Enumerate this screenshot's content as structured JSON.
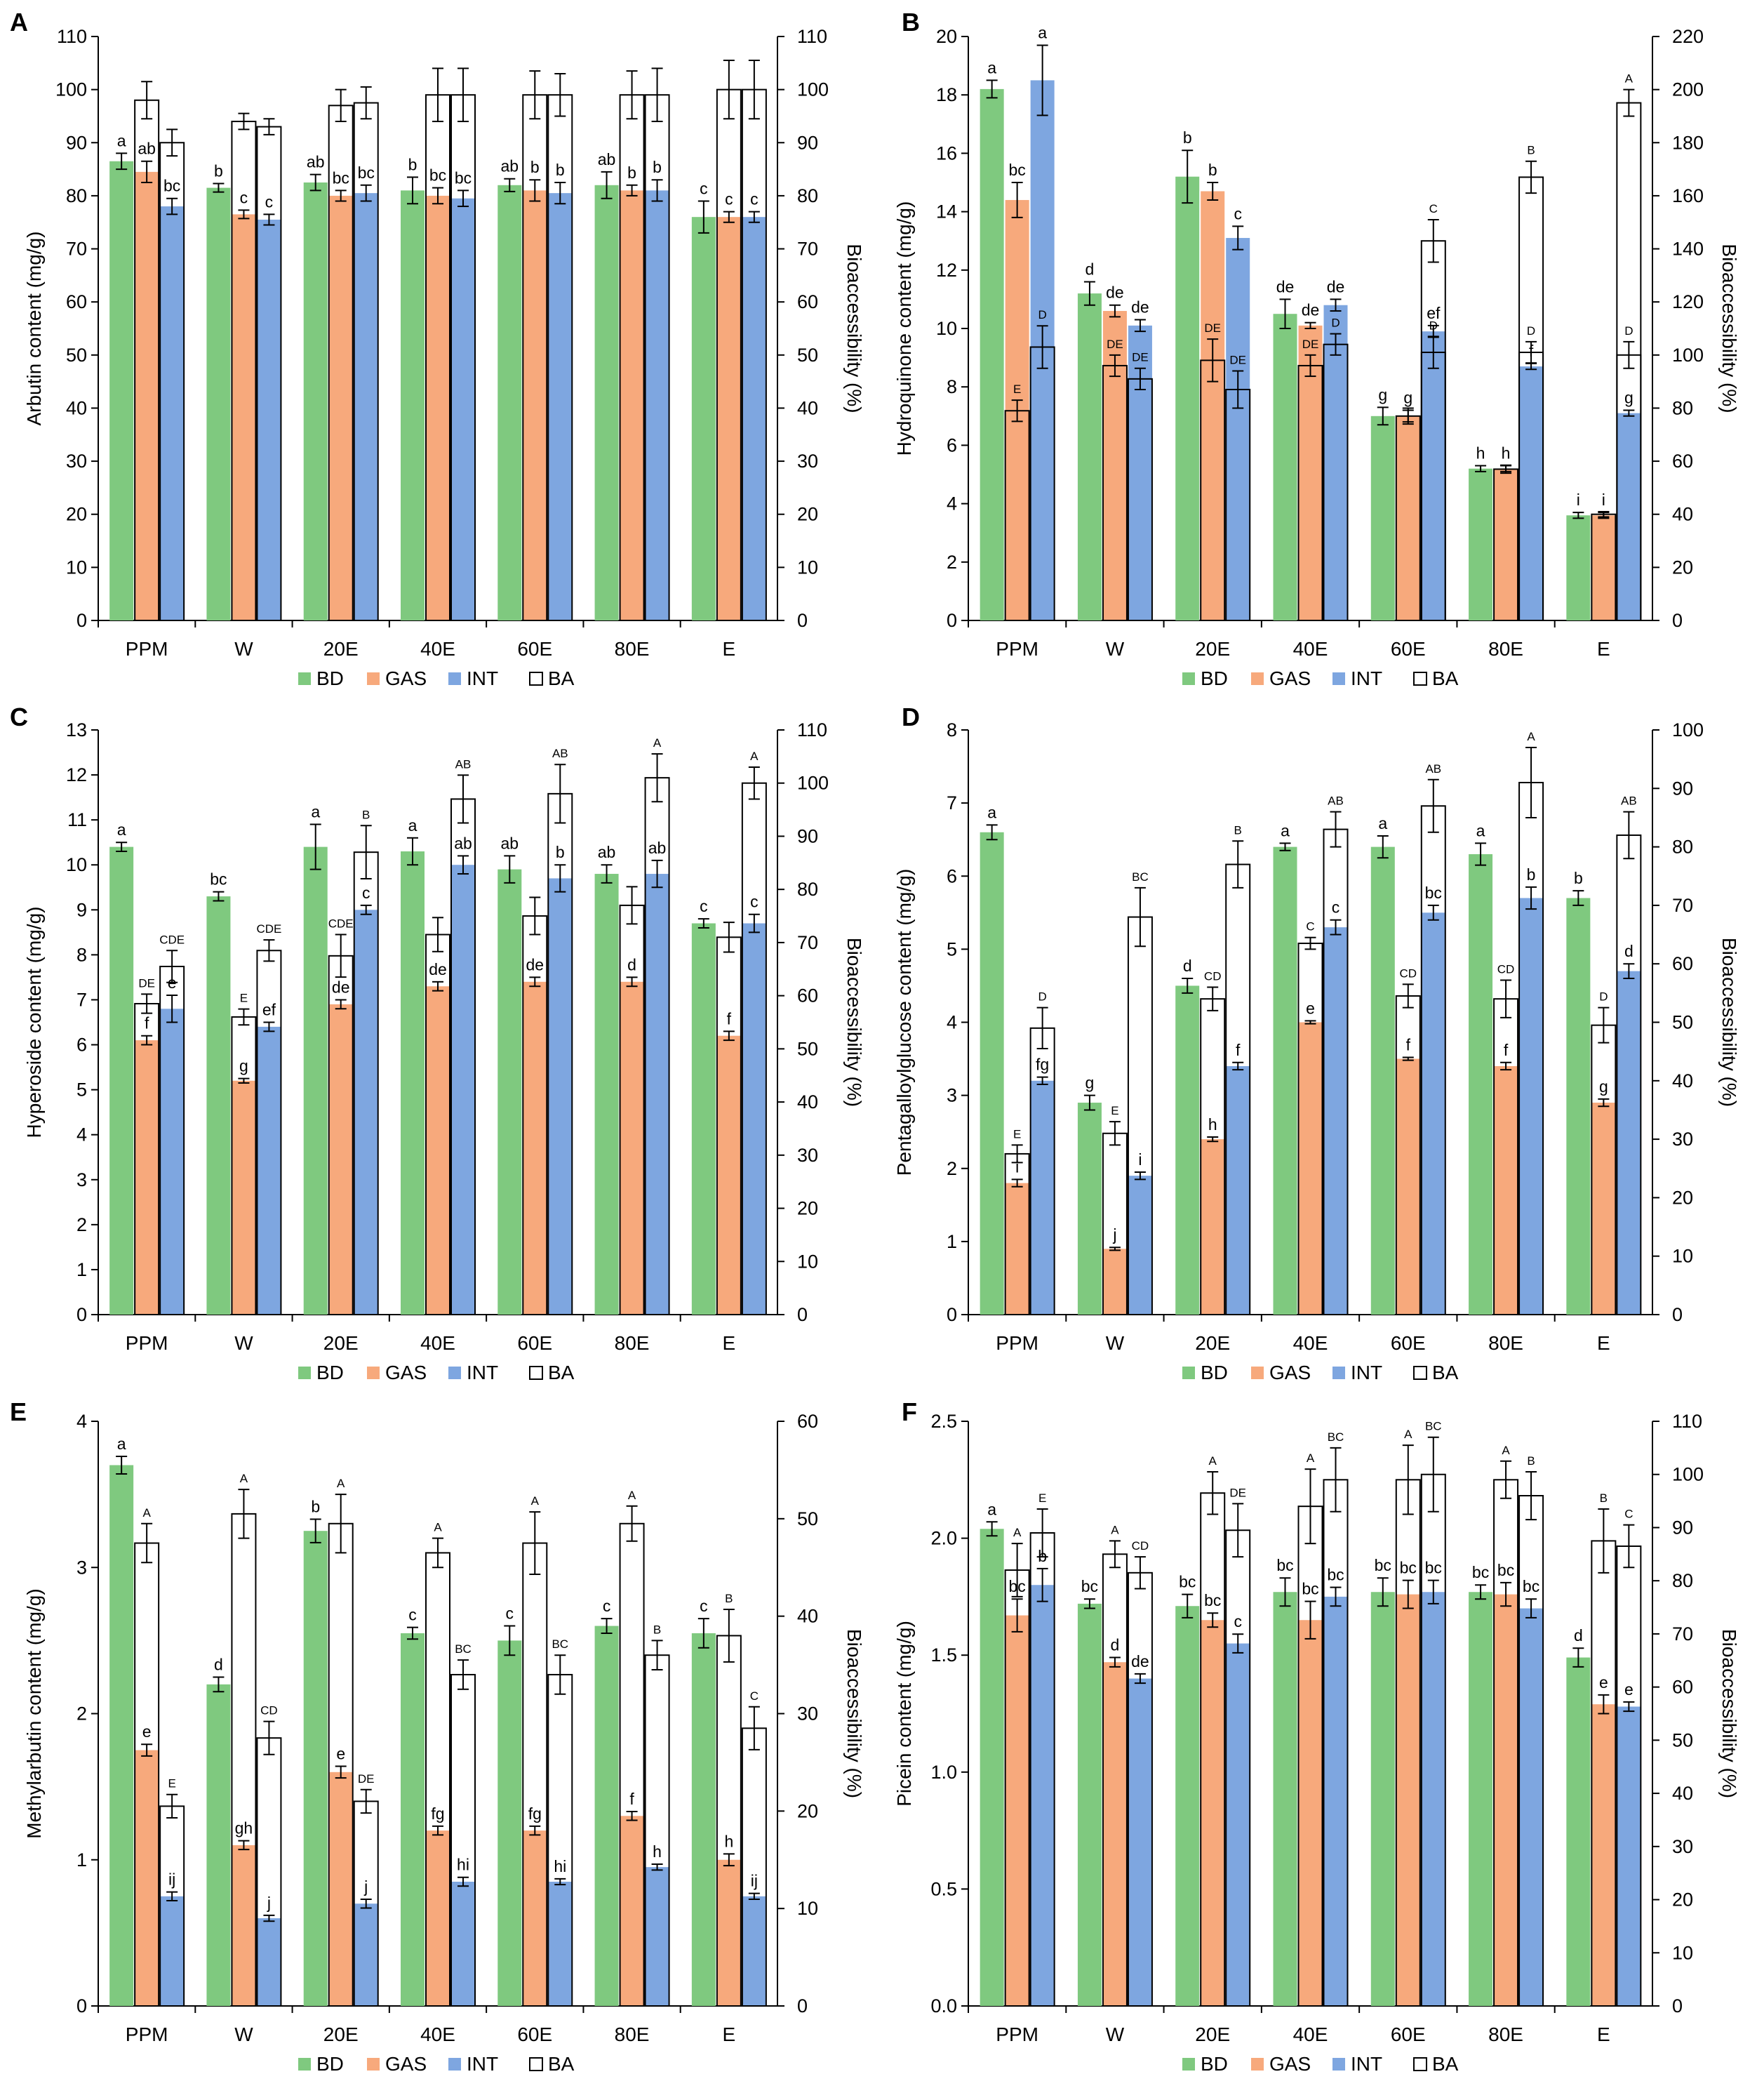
{
  "colors": {
    "BD": "#7fc97f",
    "GAS": "#f7a97c",
    "INT": "#7ea6e0",
    "BA": "#ffffff"
  },
  "legend": [
    "BD",
    "GAS",
    "INT",
    "BA"
  ],
  "chart_data": [
    {
      "panel": "A",
      "type": "bar",
      "categories": [
        "PPM",
        "W",
        "20E",
        "40E",
        "60E",
        "80E",
        "E"
      ],
      "ylabel": "Arbutin content (mg/g)",
      "y2label": "Bioaccessibility (%)",
      "ylim": [
        0,
        110
      ],
      "ystep": 10,
      "y2lim": [
        0,
        110
      ],
      "y2step": 10,
      "decimals": 0,
      "series": [
        {
          "name": "BD",
          "axis": "left",
          "values": [
            86.5,
            81.5,
            82.5,
            81,
            82,
            82,
            76
          ],
          "err": [
            1.5,
            0.8,
            1.5,
            2.5,
            1.2,
            2.5,
            3
          ],
          "labels": [
            "a",
            "b",
            "ab",
            "b",
            "ab",
            "ab",
            "c"
          ]
        },
        {
          "name": "GAS",
          "axis": "left",
          "values": [
            84.5,
            76.5,
            80,
            80,
            81,
            81,
            76
          ],
          "err": [
            2,
            0.8,
            1,
            1.5,
            2,
            1,
            1
          ],
          "labels": [
            "ab",
            "c",
            "bc",
            "bc",
            "b",
            "b",
            "c"
          ]
        },
        {
          "name": "INT",
          "axis": "left",
          "values": [
            78,
            75.5,
            80.5,
            79.5,
            80.5,
            81,
            76
          ],
          "err": [
            1.5,
            1,
            1.5,
            1.5,
            2,
            2,
            1
          ],
          "labels": [
            "bc",
            "c",
            "bc",
            "bc",
            "b",
            "b",
            "c"
          ]
        },
        {
          "name": "BA",
          "axis": "right",
          "start": "GAS",
          "values": [
            98,
            94,
            97,
            99,
            99,
            99,
            100
          ],
          "err": [
            3.5,
            1.5,
            3,
            5,
            4.5,
            4.5,
            5.5
          ],
          "labels": [
            "",
            "",
            "",
            "",
            "",
            "",
            ""
          ]
        },
        {
          "name": "BA",
          "axis": "right",
          "start": "INT",
          "values": [
            90,
            93,
            97.5,
            99,
            99,
            99,
            100
          ],
          "err": [
            2.5,
            1.5,
            3,
            5,
            4,
            5,
            5.5
          ],
          "labels": [
            "",
            "",
            "",
            "",
            "",
            "",
            ""
          ]
        }
      ]
    },
    {
      "panel": "B",
      "type": "bar",
      "categories": [
        "PPM",
        "W",
        "20E",
        "40E",
        "60E",
        "80E",
        "E"
      ],
      "ylabel": "Hydroquinone content (mg/g)",
      "y2label": "Bioaccessibility (%)",
      "ylim": [
        0,
        20
      ],
      "ystep": 2,
      "y2lim": [
        0,
        220
      ],
      "y2step": 20,
      "decimals": 0,
      "series": [
        {
          "name": "BD",
          "axis": "left",
          "values": [
            18.2,
            11.2,
            15.2,
            10.5,
            7,
            5.2,
            3.6
          ],
          "err": [
            0.3,
            0.4,
            0.9,
            0.5,
            0.3,
            0.1,
            0.1
          ],
          "labels": [
            "a",
            "d",
            "b",
            "de",
            "g",
            "h",
            "i"
          ]
        },
        {
          "name": "GAS",
          "axis": "left",
          "values": [
            14.4,
            10.6,
            14.7,
            10.1,
            7,
            5.2,
            3.6
          ],
          "err": [
            0.6,
            0.2,
            0.3,
            0.1,
            0.2,
            0.1,
            0.1
          ],
          "labels": [
            "bc",
            "de",
            "b",
            "de",
            "g",
            "h",
            "i"
          ]
        },
        {
          "name": "INT",
          "axis": "left",
          "values": [
            18.5,
            10.1,
            13.1,
            10.8,
            9.9,
            8.7,
            7.1
          ],
          "err": [
            1.2,
            0.2,
            0.4,
            0.2,
            0.2,
            0.1,
            0.1
          ],
          "labels": [
            "a",
            "de",
            "c",
            "de",
            "ef",
            "f",
            "g"
          ]
        },
        {
          "name": "BA",
          "axis": "right",
          "start": "GAS",
          "values": [
            79,
            96,
            98,
            96,
            77,
            57,
            40
          ],
          "err": [
            4,
            4,
            8,
            4,
            3,
            1.5,
            1
          ],
          "labels": [
            "E",
            "DE",
            "DE",
            "DE",
            "",
            "",
            ""
          ]
        },
        {
          "name": "BA",
          "axis": "right",
          "start": "INT",
          "values": [
            103,
            91,
            87,
            104,
            101,
            101,
            100
          ],
          "err": [
            8,
            4,
            7,
            4,
            6,
            4,
            5
          ],
          "labels": [
            "D",
            "DE",
            "DE",
            "D",
            "D",
            "D",
            "D"
          ]
        },
        {
          "name": "BA",
          "axis": "right",
          "start": "INT",
          "values": [
            0,
            0,
            0,
            0,
            143,
            167,
            195
          ],
          "err": [
            0,
            0,
            0,
            0,
            8,
            6,
            5
          ],
          "labels": [
            "",
            "",
            "",
            "",
            "C",
            "B",
            "A"
          ]
        }
      ]
    },
    {
      "panel": "C",
      "type": "bar",
      "categories": [
        "PPM",
        "W",
        "20E",
        "40E",
        "60E",
        "80E",
        "E"
      ],
      "ylabel": "Hyperoside content (mg/g)",
      "y2label": "Bioaccessibility (%)",
      "ylim": [
        0,
        13
      ],
      "ystep": 1,
      "y2lim": [
        0,
        110
      ],
      "y2step": 10,
      "decimals": 0,
      "series": [
        {
          "name": "BD",
          "axis": "left",
          "values": [
            10.4,
            9.3,
            10.4,
            10.3,
            9.9,
            9.8,
            8.7
          ],
          "err": [
            0.1,
            0.1,
            0.5,
            0.3,
            0.3,
            0.2,
            0.1
          ],
          "labels": [
            "a",
            "bc",
            "a",
            "a",
            "ab",
            "ab",
            "c"
          ]
        },
        {
          "name": "GAS",
          "axis": "left",
          "values": [
            6.1,
            5.2,
            6.9,
            7.3,
            7.4,
            7.4,
            6.2
          ],
          "err": [
            0.1,
            0.05,
            0.1,
            0.1,
            0.1,
            0.1,
            0.1
          ],
          "labels": [
            "f",
            "g",
            "de",
            "de",
            "de",
            "d",
            "f"
          ]
        },
        {
          "name": "INT",
          "axis": "left",
          "values": [
            6.8,
            6.4,
            9,
            10,
            9.7,
            9.8,
            8.7
          ],
          "err": [
            0.3,
            0.1,
            0.1,
            0.2,
            0.3,
            0.3,
            0.2
          ],
          "labels": [
            "e",
            "ef",
            "c",
            "ab",
            "b",
            "ab",
            "c"
          ]
        },
        {
          "name": "BA",
          "axis": "right",
          "start": "GAS",
          "values": [
            58.5,
            56,
            67.5,
            71.5,
            75,
            77,
            71
          ],
          "err": [
            1.8,
            1.5,
            4,
            3.2,
            3.5,
            3.5,
            2.8
          ],
          "labels": [
            "DE",
            "E",
            "CDE",
            "",
            "",
            "",
            ""
          ]
        },
        {
          "name": "BA",
          "axis": "right",
          "start": "INT",
          "values": [
            65.5,
            68.5,
            87,
            97,
            98,
            101,
            100
          ],
          "err": [
            3,
            2,
            5,
            4.5,
            5.5,
            4.5,
            3
          ],
          "labels": [
            "CDE",
            "CDE",
            "B",
            "AB",
            "AB",
            "A",
            "A"
          ]
        }
      ]
    },
    {
      "panel": "D",
      "type": "bar",
      "categories": [
        "PPM",
        "W",
        "20E",
        "40E",
        "60E",
        "80E",
        "E"
      ],
      "ylabel": "Pentagalloylglucose content (mg/g)",
      "y2label": "Bioaccessibility (%)",
      "ylim": [
        0,
        8
      ],
      "ystep": 1,
      "y2lim": [
        0,
        100
      ],
      "y2step": 10,
      "decimals": 0,
      "series": [
        {
          "name": "BD",
          "axis": "left",
          "values": [
            6.6,
            2.9,
            4.5,
            6.4,
            6.4,
            6.3,
            5.7
          ],
          "err": [
            0.1,
            0.1,
            0.1,
            0.05,
            0.15,
            0.15,
            0.1
          ],
          "labels": [
            "a",
            "g",
            "d",
            "a",
            "a",
            "a",
            "b"
          ]
        },
        {
          "name": "GAS",
          "axis": "left",
          "values": [
            1.8,
            0.9,
            2.4,
            4,
            3.5,
            3.4,
            2.9
          ],
          "err": [
            0.05,
            0.02,
            0.03,
            0.02,
            0.02,
            0.05,
            0.05
          ],
          "labels": [
            "i",
            "j",
            "h",
            "e",
            "f",
            "f",
            "g"
          ]
        },
        {
          "name": "INT",
          "axis": "left",
          "values": [
            3.2,
            1.9,
            3.4,
            5.3,
            5.5,
            5.7,
            4.7
          ],
          "err": [
            0.05,
            0.05,
            0.05,
            0.1,
            0.1,
            0.15,
            0.1
          ],
          "labels": [
            "fg",
            "i",
            "f",
            "c",
            "bc",
            "b",
            "d"
          ]
        },
        {
          "name": "BA",
          "axis": "right",
          "start": "GAS",
          "values": [
            27.5,
            31,
            54,
            63.5,
            54.5,
            54,
            49.5
          ],
          "err": [
            1.5,
            2,
            2,
            1,
            2,
            3.2,
            3
          ],
          "labels": [
            "E",
            "E",
            "CD",
            "C",
            "CD",
            "CD",
            "D"
          ]
        },
        {
          "name": "BA",
          "axis": "right",
          "start": "INT",
          "values": [
            49,
            68,
            77,
            83,
            87,
            91,
            82
          ],
          "err": [
            3.5,
            5,
            4,
            3,
            4.5,
            6,
            4
          ],
          "labels": [
            "D",
            "BC",
            "B",
            "AB",
            "AB",
            "A",
            "AB"
          ]
        }
      ]
    },
    {
      "panel": "E",
      "type": "bar",
      "categories": [
        "PPM",
        "W",
        "20E",
        "40E",
        "60E",
        "80E",
        "E"
      ],
      "ylabel": "Methylarbutin content (mg/g)",
      "y2label": "Bioaccessibility (%)",
      "ylim": [
        0,
        4
      ],
      "ystep": 1,
      "y2lim": [
        0,
        60
      ],
      "y2step": 10,
      "decimals": 0,
      "series": [
        {
          "name": "BD",
          "axis": "left",
          "values": [
            3.7,
            2.2,
            3.25,
            2.55,
            2.5,
            2.6,
            2.55
          ],
          "err": [
            0.06,
            0.05,
            0.08,
            0.04,
            0.1,
            0.05,
            0.1
          ],
          "labels": [
            "a",
            "d",
            "b",
            "c",
            "c",
            "c",
            "c"
          ]
        },
        {
          "name": "GAS",
          "axis": "left",
          "values": [
            1.75,
            1.1,
            1.6,
            1.2,
            1.2,
            1.3,
            1
          ],
          "err": [
            0.04,
            0.03,
            0.04,
            0.03,
            0.03,
            0.03,
            0.04
          ],
          "labels": [
            "e",
            "gh",
            "e",
            "fg",
            "fg",
            "f",
            "h"
          ]
        },
        {
          "name": "INT",
          "axis": "left",
          "values": [
            0.75,
            0.6,
            0.7,
            0.85,
            0.85,
            0.95,
            0.75
          ],
          "err": [
            0.03,
            0.02,
            0.03,
            0.03,
            0.02,
            0.02,
            0.02
          ],
          "labels": [
            "ij",
            "j",
            "j",
            "hi",
            "hi",
            "h",
            "ij"
          ]
        },
        {
          "name": "BA",
          "axis": "right",
          "start": "GAS",
          "values": [
            47.5,
            50.5,
            49.5,
            46.5,
            47.5,
            49.5,
            38
          ],
          "err": [
            2,
            2.5,
            3,
            1.5,
            3.2,
            1.8,
            2.7
          ],
          "labels": [
            "A",
            "A",
            "A",
            "A",
            "A",
            "A",
            "B"
          ]
        },
        {
          "name": "BA",
          "axis": "right",
          "start": "INT",
          "values": [
            20.5,
            27.5,
            21,
            34,
            34,
            36,
            28.5
          ],
          "err": [
            1.2,
            1.7,
            1.2,
            1.5,
            2,
            1.5,
            2.2
          ],
          "labels": [
            "E",
            "CD",
            "DE",
            "BC",
            "BC",
            "B",
            "C"
          ]
        }
      ]
    },
    {
      "panel": "F",
      "type": "bar",
      "categories": [
        "PPM",
        "W",
        "20E",
        "40E",
        "60E",
        "80E",
        "E"
      ],
      "ylabel": "Picein content (mg/g)",
      "y2label": "Bioaccessibility (%)",
      "ylim": [
        0,
        2.5
      ],
      "ystep": 0.5,
      "y2lim": [
        0,
        110
      ],
      "y2step": 10,
      "decimals": 1,
      "series": [
        {
          "name": "BD",
          "axis": "left",
          "values": [
            2.04,
            1.72,
            1.71,
            1.77,
            1.77,
            1.77,
            1.49
          ],
          "err": [
            0.03,
            0.02,
            0.05,
            0.06,
            0.06,
            0.03,
            0.04
          ],
          "labels": [
            "a",
            "bc",
            "bc",
            "bc",
            "bc",
            "bc",
            "d"
          ]
        },
        {
          "name": "GAS",
          "axis": "left",
          "values": [
            1.67,
            1.47,
            1.65,
            1.65,
            1.76,
            1.76,
            1.29
          ],
          "err": [
            0.07,
            0.02,
            0.03,
            0.08,
            0.06,
            0.05,
            0.04
          ],
          "labels": [
            "bc",
            "d",
            "bc",
            "bc",
            "bc",
            "bc",
            "e"
          ]
        },
        {
          "name": "INT",
          "axis": "left",
          "values": [
            1.8,
            1.4,
            1.55,
            1.75,
            1.77,
            1.7,
            1.28
          ],
          "err": [
            0.07,
            0.02,
            0.04,
            0.04,
            0.05,
            0.04,
            0.02
          ],
          "labels": [
            "b",
            "de",
            "c",
            "bc",
            "bc",
            "bc",
            "e"
          ]
        },
        {
          "name": "BA",
          "axis": "right",
          "start": "GAS",
          "values": [
            82,
            85,
            96.5,
            94,
            99,
            99,
            87.5
          ],
          "err": [
            5,
            2.5,
            4,
            7,
            6.5,
            3.5,
            6
          ],
          "labels": [
            "A",
            "A",
            "A",
            "A",
            "A",
            "A",
            "B"
          ]
        },
        {
          "name": "BA",
          "axis": "right",
          "start": "INT",
          "values": [
            89,
            81.5,
            89.5,
            99,
            100,
            96,
            86.5
          ],
          "err": [
            4.5,
            3,
            5,
            6,
            7,
            4.5,
            4
          ],
          "labels": [
            "E",
            "CD",
            "DE",
            "BC",
            "BC",
            "B",
            "C"
          ]
        }
      ]
    }
  ]
}
